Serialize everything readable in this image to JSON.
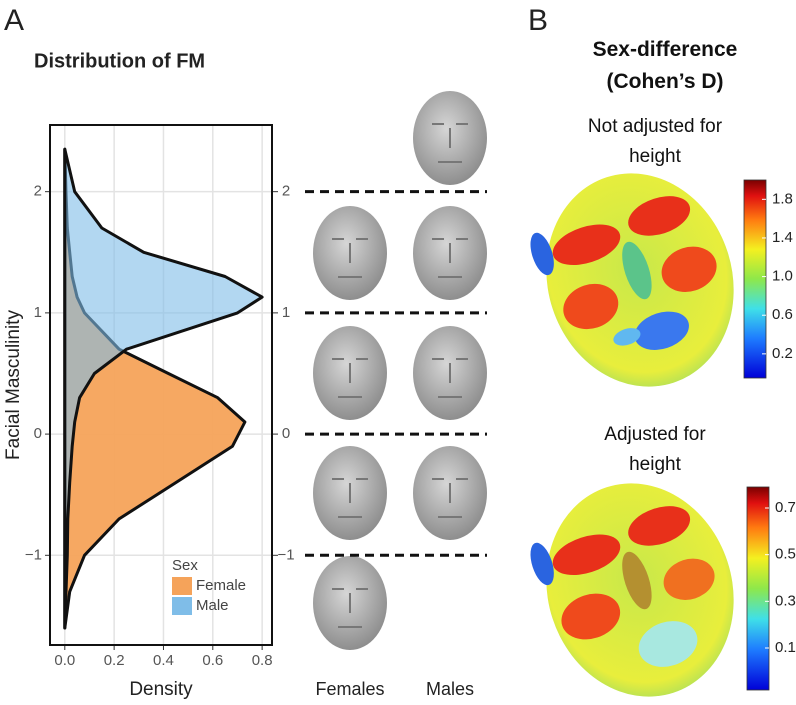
{
  "panel_labels": [
    "A",
    "B"
  ],
  "panel_b_title": "Sex-difference (Cohen’s D)",
  "chart_data": [
    {
      "type": "density",
      "title": "Distribution of FM",
      "xlabel": "Density",
      "ylabel": "Facial Masculinity",
      "legend_title": "Sex",
      "face_columns": [
        "Females",
        "Males"
      ],
      "x": [
        -1.6,
        -1.3,
        -1.0,
        -0.7,
        -0.4,
        -0.1,
        0.1,
        0.3,
        0.5,
        0.7,
        1.0,
        1.13,
        1.3,
        1.5,
        1.7,
        2.0,
        2.35
      ],
      "series": [
        {
          "name": "Female",
          "color": "#f5a35a",
          "values": [
            0,
            0.02,
            0.08,
            0.22,
            0.45,
            0.68,
            0.73,
            0.62,
            0.42,
            0.22,
            0.08,
            0.05,
            0.03,
            0.02,
            0.01,
            0.005,
            0
          ]
        },
        {
          "name": "Male",
          "color": "#7fbde8",
          "values": [
            0,
            0.005,
            0.01,
            0.012,
            0.02,
            0.03,
            0.04,
            0.06,
            0.12,
            0.25,
            0.7,
            0.8,
            0.65,
            0.32,
            0.15,
            0.04,
            0
          ]
        }
      ],
      "xlim": [
        -0.06,
        0.84
      ],
      "xticks": [
        {
          "value": 0,
          "label": "0.0"
        },
        0.2,
        0.4,
        0.6,
        0.8
      ],
      "ylim": [
        -1.74,
        2.55
      ],
      "yticks": [
        {
          "value": -1,
          "label": "−1"
        },
        0,
        1,
        2
      ],
      "grid": true
    },
    {
      "type": "colorbar",
      "title": "Not adjusted for height",
      "ylim": [
        -0.05,
        2.0
      ],
      "yticks": [
        0.2,
        0.6,
        {
          "value": 1,
          "label": "1.0"
        },
        1.4,
        1.8
      ]
    },
    {
      "type": "colorbar",
      "title": "Adjusted for height",
      "ylim": [
        -0.08,
        0.79
      ],
      "yticks": [
        0.1,
        0.3,
        0.5,
        0.7
      ]
    }
  ]
}
